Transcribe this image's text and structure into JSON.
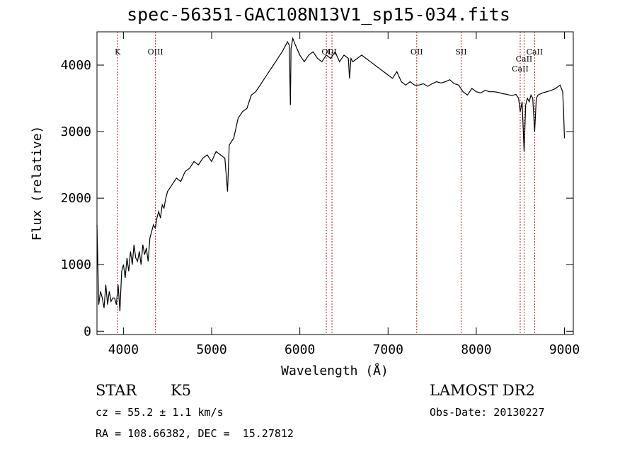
{
  "title": "spec-56351-GAC108N13V1_sp15-034.fits",
  "info": {
    "class": "STAR",
    "subclass": "K5",
    "survey": "LAMOST DR2",
    "cz": "cz = 55.2 ± 1.1 km/s",
    "obs_date": "Obs-Date: 20130227",
    "coords": "RA = 108.66382, DEC =  15.27812"
  },
  "chart_data": {
    "type": "line",
    "title": "spec-56351-GAC108N13V1_sp15-034.fits",
    "xlabel": "Wavelength (Å)",
    "ylabel": "Flux (relative)",
    "xlim": [
      3700,
      9100
    ],
    "ylim": [
      -50,
      4500
    ],
    "xticks": [
      4000,
      5000,
      6000,
      7000,
      8000,
      9000
    ],
    "yticks": [
      0,
      1000,
      2000,
      3000,
      4000
    ],
    "grid": false,
    "line_color": "#000000",
    "marker_color": "#b22222",
    "series": [
      {
        "x": [
          3700,
          3720,
          3740,
          3760,
          3780,
          3800,
          3820,
          3840,
          3860,
          3880,
          3900,
          3920,
          3940,
          3960,
          3980,
          4000,
          4020,
          4040,
          4060,
          4080,
          4100,
          4120,
          4140,
          4160,
          4180,
          4200,
          4220,
          4240,
          4260,
          4280,
          4300,
          4320,
          4340,
          4360,
          4380,
          4400,
          4420,
          4440,
          4460,
          4480,
          4500,
          4550,
          4600,
          4650,
          4700,
          4750,
          4800,
          4850,
          4900,
          4950,
          5000,
          5050,
          5100,
          5150,
          5180,
          5200,
          5250,
          5300,
          5350,
          5400,
          5450,
          5500,
          5550,
          5600,
          5650,
          5700,
          5750,
          5800,
          5840,
          5860,
          5880,
          5893,
          5900,
          5920,
          5950,
          6000,
          6050,
          6100,
          6150,
          6200,
          6250,
          6300,
          6350,
          6400,
          6450,
          6500,
          6550,
          6563,
          6580,
          6600,
          6650,
          6700,
          6750,
          6800,
          6850,
          6900,
          6950,
          7000,
          7050,
          7100,
          7150,
          7200,
          7250,
          7300,
          7350,
          7400,
          7450,
          7500,
          7550,
          7600,
          7650,
          7700,
          7750,
          7800,
          7850,
          7900,
          7950,
          8000,
          8050,
          8100,
          8150,
          8200,
          8250,
          8300,
          8350,
          8400,
          8450,
          8480,
          8498,
          8520,
          8542,
          8560,
          8580,
          8600,
          8620,
          8640,
          8662,
          8680,
          8700,
          8750,
          8800,
          8850,
          8900,
          8950,
          8980,
          8990,
          9000
        ],
        "y": [
          1600,
          400,
          600,
          500,
          350,
          700,
          400,
          600,
          450,
          500,
          500,
          400,
          700,
          300,
          900,
          1000,
          800,
          1100,
          900,
          1200,
          1000,
          1300,
          1100,
          1050,
          1200,
          1000,
          1300,
          1150,
          1250,
          1050,
          1400,
          1500,
          1600,
          1550,
          1700,
          1800,
          1700,
          1900,
          1850,
          2000,
          2100,
          2200,
          2300,
          2250,
          2400,
          2450,
          2550,
          2500,
          2600,
          2650,
          2550,
          2700,
          2650,
          2600,
          2100,
          2800,
          2900,
          3200,
          3300,
          3350,
          3550,
          3600,
          3700,
          3800,
          3900,
          4000,
          4100,
          4200,
          4300,
          4350,
          4300,
          3400,
          4250,
          4400,
          4300,
          4150,
          4050,
          4150,
          4200,
          4100,
          4050,
          4150,
          4100,
          4200,
          4050,
          4150,
          4100,
          3800,
          4100,
          4050,
          4100,
          4150,
          4100,
          4050,
          4000,
          3950,
          3900,
          3850,
          3800,
          3900,
          3750,
          3700,
          3750,
          3700,
          3700,
          3720,
          3680,
          3720,
          3750,
          3730,
          3750,
          3780,
          3720,
          3700,
          3600,
          3550,
          3650,
          3600,
          3580,
          3620,
          3600,
          3600,
          3590,
          3570,
          3560,
          3540,
          3560,
          3500,
          3300,
          3450,
          2700,
          3400,
          3500,
          3450,
          3550,
          3500,
          3000,
          3500,
          3550,
          3580,
          3600,
          3620,
          3650,
          3700,
          3600,
          3300,
          2900
        ]
      }
    ],
    "line_markers": [
      {
        "label": "K",
        "x": 3934
      },
      {
        "label": "OIII",
        "x": 4363
      },
      {
        "label": "OI",
        "x": 6300
      },
      {
        "label": "OI",
        "x": 6364
      },
      {
        "label": "OII",
        "x": 7325
      },
      {
        "label": "SII",
        "x": 7828
      },
      {
        "label": "CaII",
        "x": 8498
      },
      {
        "label": "CaII",
        "x": 8542
      },
      {
        "label": "CaII",
        "x": 8662
      }
    ]
  }
}
